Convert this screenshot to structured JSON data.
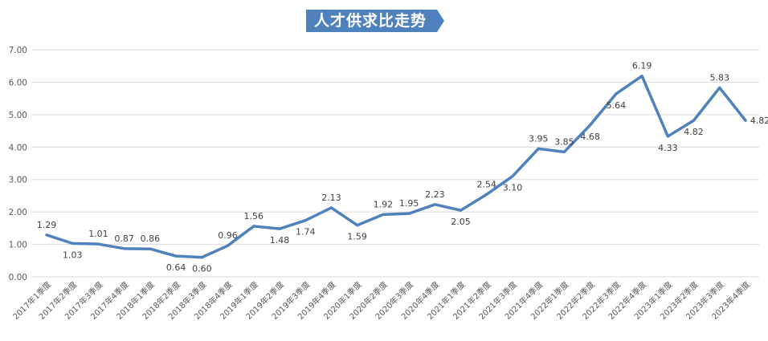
{
  "chart_data": {
    "type": "line",
    "title": "人才供求比走势",
    "xlabel": "",
    "ylabel": "",
    "ylim": [
      0,
      7
    ],
    "yticks": [
      "0.00",
      "1.00",
      "2.00",
      "3.00",
      "4.00",
      "5.00",
      "6.00",
      "7.00"
    ],
    "grid": true,
    "legend": "none",
    "categories": [
      "2017年1季度",
      "2017年2季度",
      "2017年3季度",
      "2017年4季度",
      "2018年1季度",
      "2018年2季度",
      "2018年3季度",
      "2018年4季度",
      "2019年1季度",
      "2019年2季度",
      "2019年3季度",
      "2019年4季度",
      "2020年1季度",
      "2020年2季度",
      "2020年3季度",
      "2020年4季度",
      "2021年1季度",
      "2021年2季度",
      "2021年3季度",
      "2021年4季度",
      "2022年1季度",
      "2022年2季度",
      "2022年3季度",
      "2022年4季度",
      "2023年1季度",
      "2023年2季度",
      "2023年3季度",
      "2023年4季度"
    ],
    "series": [
      {
        "values": [
          1.29,
          1.03,
          1.01,
          0.87,
          0.86,
          0.64,
          0.6,
          0.96,
          1.56,
          1.48,
          1.74,
          2.13,
          1.59,
          1.92,
          1.95,
          2.23,
          2.05,
          2.54,
          3.1,
          3.95,
          3.85,
          4.68,
          5.64,
          6.19,
          4.33,
          4.82,
          5.83,
          4.82
        ],
        "labels": [
          "1.29",
          "1.03",
          "1.01",
          "0.87",
          "0.86",
          "0.64",
          "0.60",
          "0.96",
          "1.56",
          "1.48",
          "1.74",
          "2.13",
          "1.59",
          "1.92",
          "1.95",
          "2.23",
          "2.05",
          "2.54",
          "3.10",
          "3.95",
          "3.85",
          "4.68",
          "5.64",
          "6.19",
          "4.33",
          "4.82",
          "5.83",
          "4.82"
        ]
      }
    ],
    "colors": {
      "line": "#4f81bd",
      "title_bg": "#4f81bd",
      "grid": "#d9d9d9",
      "tick_text": "#595959"
    }
  }
}
